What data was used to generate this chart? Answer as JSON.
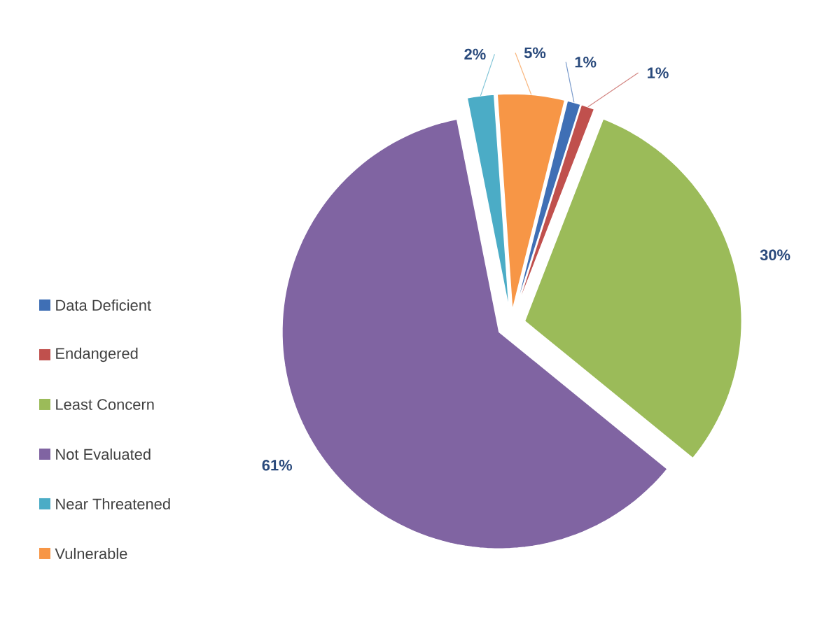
{
  "chart_data": {
    "type": "pie",
    "categories": [
      "Data Deficient",
      "Endangered",
      "Least Concern",
      "Not Evaluated",
      "Near Threatened",
      "Vulnerable"
    ],
    "values": [
      1,
      1,
      30,
      61,
      2,
      5
    ],
    "value_labels": [
      "1%",
      "1%",
      "30%",
      "61%",
      "2%",
      "5%"
    ],
    "colors": [
      "#3f6fb5",
      "#c0504d",
      "#9bbb59",
      "#8064a2",
      "#4bacc6",
      "#f79646"
    ],
    "legend": "left"
  }
}
